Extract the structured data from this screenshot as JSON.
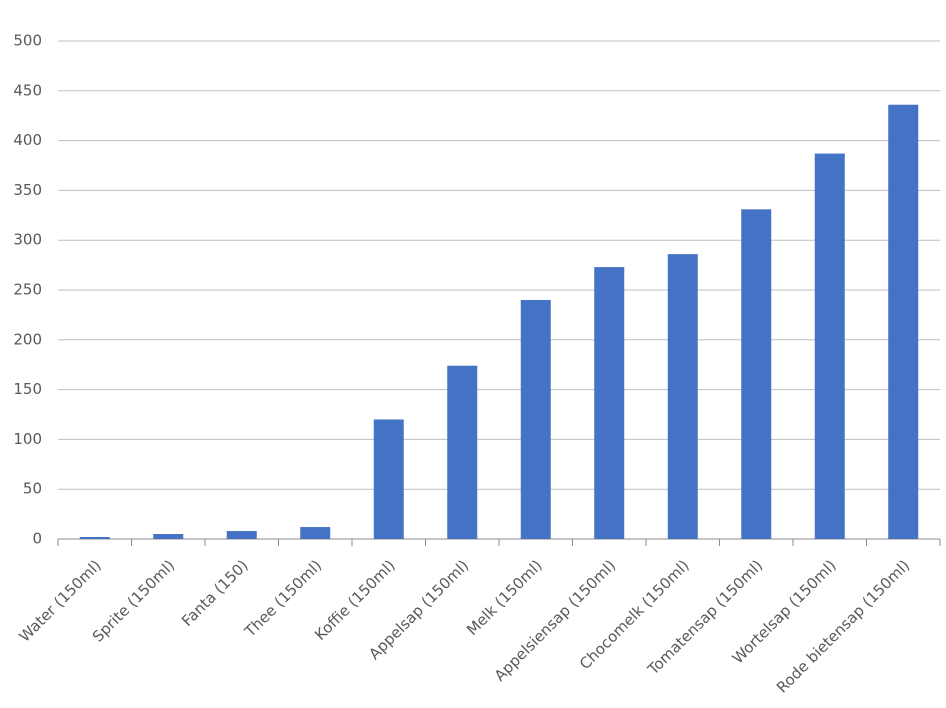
{
  "chart_data": {
    "type": "bar",
    "categories": [
      "Water (150ml)",
      "Sprite (150ml)",
      "Fanta (150)",
      "Thee (150ml)",
      "Koffie (150ml)",
      "Appelsap (150ml)",
      "Melk (150ml)",
      "Appelsiensap (150ml)",
      "Chocomelk (150ml)",
      "Tomatensap (150ml)",
      "Wortelsap (150ml)",
      "Rode bietensap (150ml)"
    ],
    "values": [
      2,
      5,
      8,
      12,
      120,
      174,
      240,
      273,
      286,
      331,
      387,
      436
    ],
    "color": "#4472c4",
    "ylim": [
      0,
      500
    ],
    "yticks": [
      0,
      50,
      100,
      150,
      200,
      250,
      300,
      350,
      400,
      450,
      500
    ],
    "grid": true
  }
}
